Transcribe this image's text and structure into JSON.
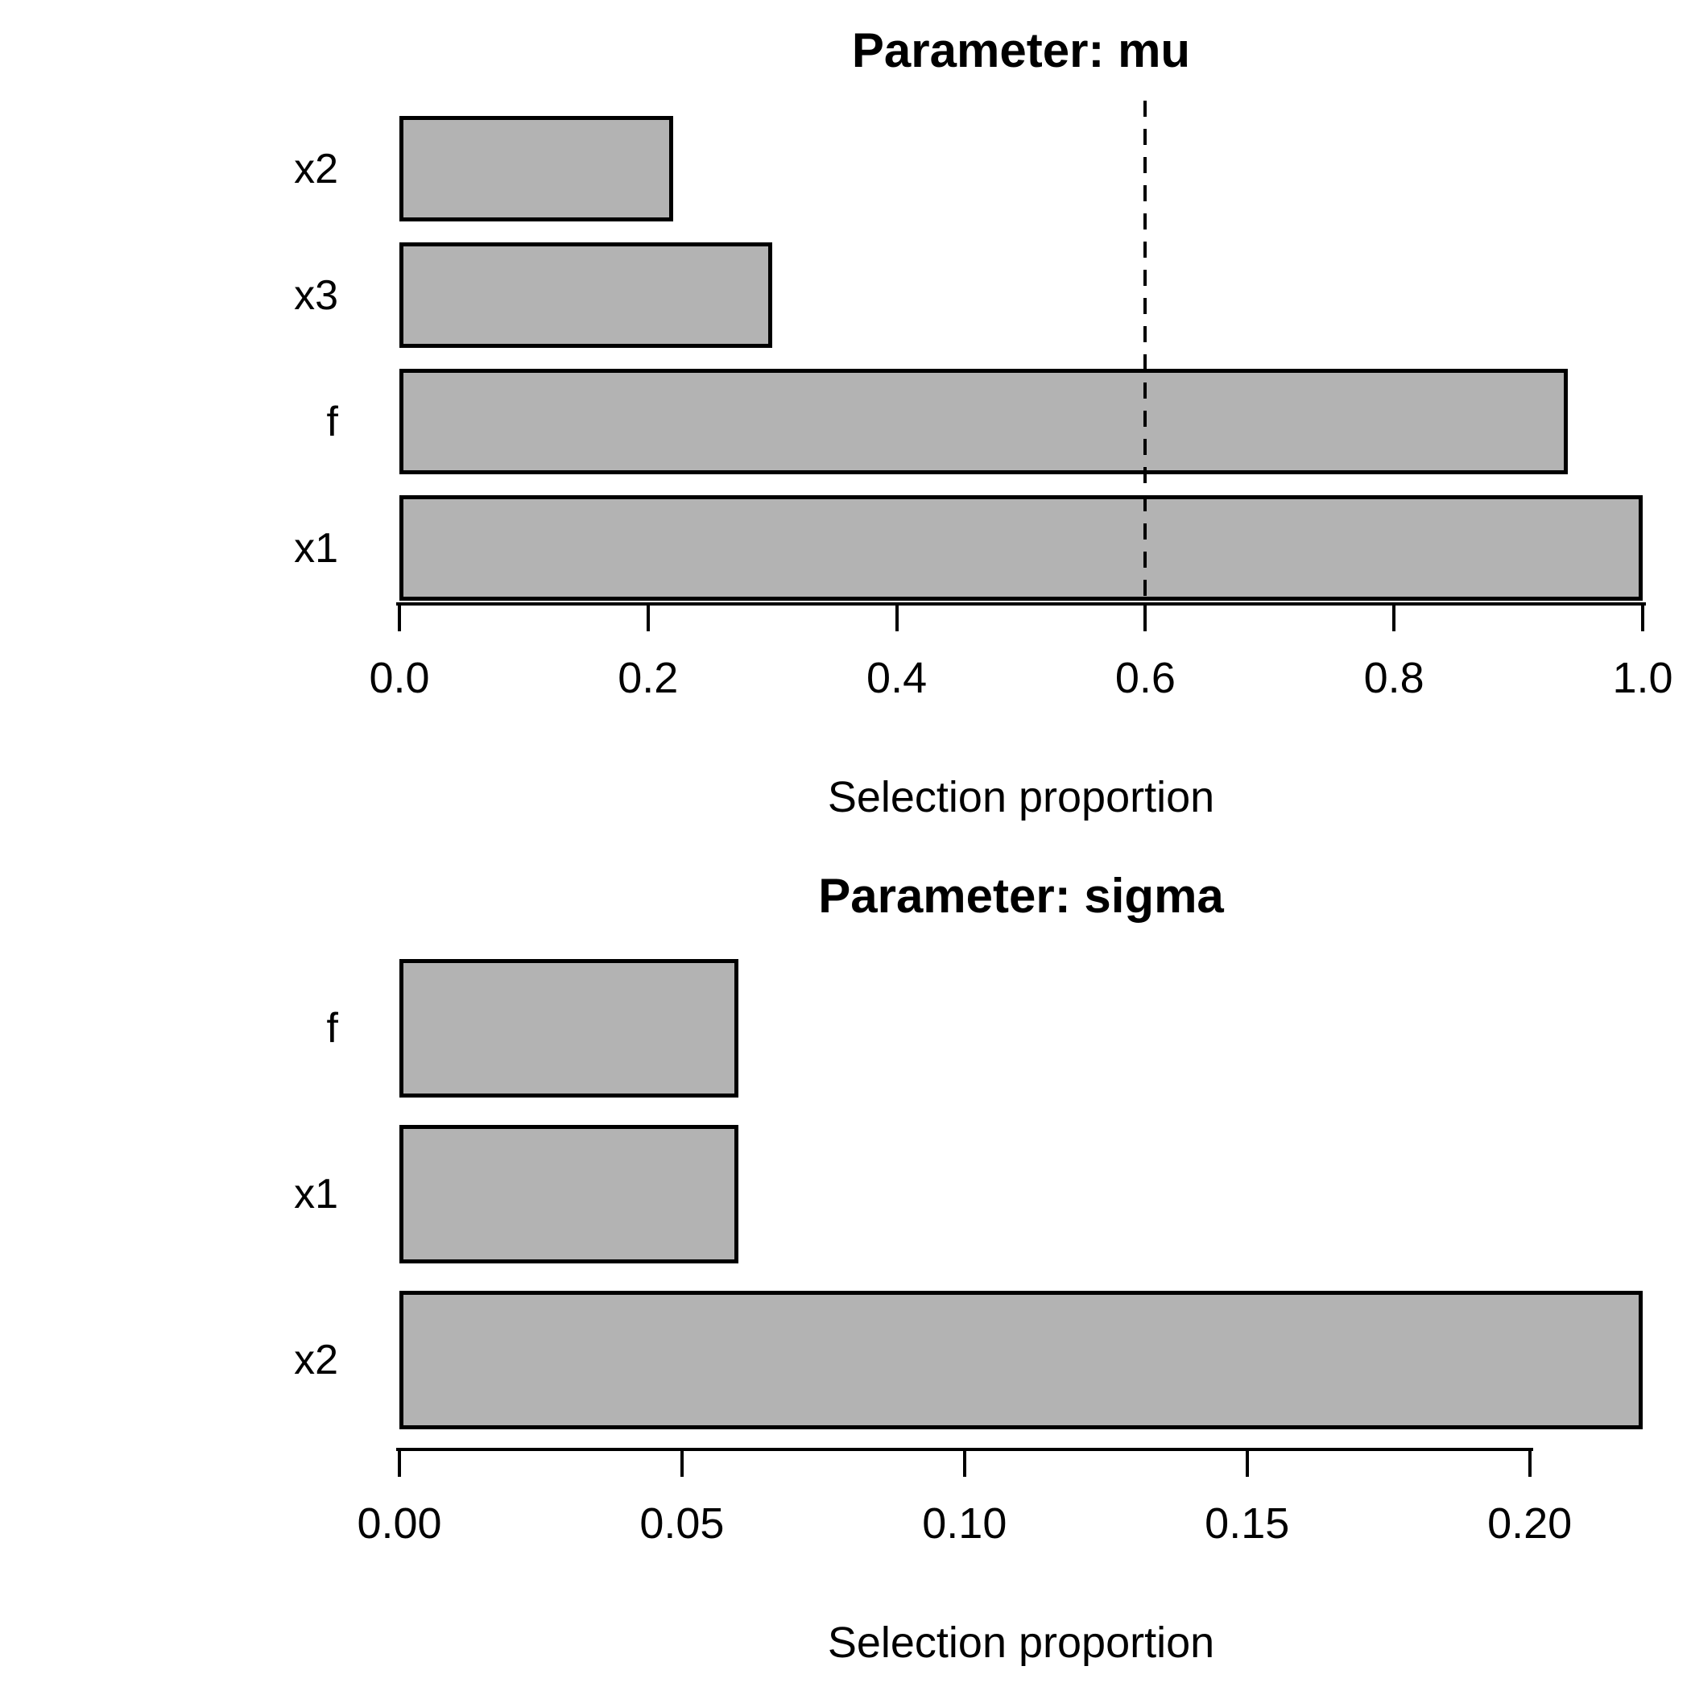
{
  "figure": {
    "background": "#ffffff",
    "bar_fill": "#b3b3b3",
    "bar_border": "#000000",
    "text_color": "#000000"
  },
  "chart_data": [
    {
      "type": "bar",
      "orientation": "horizontal",
      "title": "Parameter: mu",
      "xlabel": "Selection proportion",
      "categories": [
        "x2",
        "x3",
        "f",
        "x1"
      ],
      "values": [
        0.22,
        0.3,
        0.94,
        1.0
      ],
      "xlim": [
        0,
        1.0
      ],
      "xticks": [
        0.0,
        0.2,
        0.4,
        0.6,
        0.8,
        1.0
      ],
      "xtick_labels": [
        "0.0",
        "0.2",
        "0.4",
        "0.6",
        "0.8",
        "1.0"
      ],
      "grid": false,
      "legend": null,
      "threshold_line": {
        "value": 0.6,
        "style": "dashed",
        "color": "#000000"
      }
    },
    {
      "type": "bar",
      "orientation": "horizontal",
      "title": "Parameter: sigma",
      "xlabel": "Selection proportion",
      "categories": [
        "f",
        "x1",
        "x2"
      ],
      "values": [
        0.06,
        0.06,
        0.22
      ],
      "xlim": [
        0,
        0.22
      ],
      "xticks": [
        0.0,
        0.05,
        0.1,
        0.15,
        0.2
      ],
      "xtick_labels": [
        "0.00",
        "0.05",
        "0.10",
        "0.15",
        "0.20"
      ],
      "grid": false,
      "legend": null,
      "threshold_line": null
    }
  ]
}
